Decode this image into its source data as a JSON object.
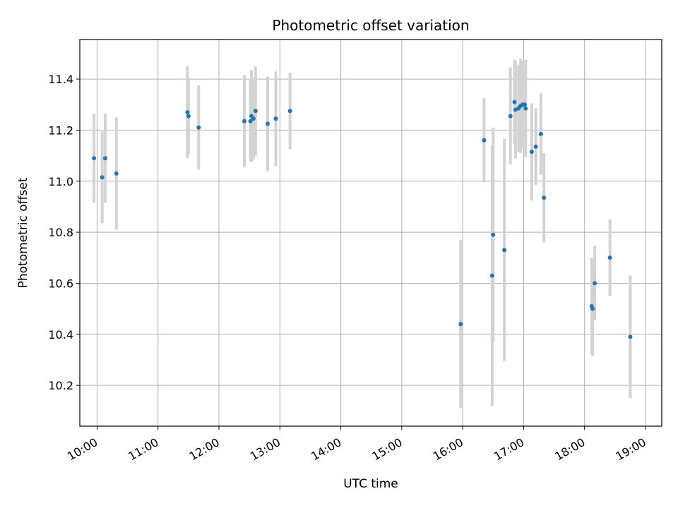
{
  "chart_data": {
    "type": "scatter",
    "title": "Photometric offset variation",
    "xlabel": "UTC time",
    "ylabel": "Photometric offset",
    "xlim": [
      "09:43",
      "19:16"
    ],
    "ylim": [
      10.04,
      11.555
    ],
    "x_ticks": [
      "10:00",
      "11:00",
      "12:00",
      "13:00",
      "14:00",
      "15:00",
      "16:00",
      "17:00",
      "18:00",
      "19:00"
    ],
    "y_ticks": [
      10.2,
      10.4,
      10.6,
      10.8,
      11.0,
      11.2,
      11.4
    ],
    "y_tick_labels": [
      "10.2",
      "10.4",
      "10.6",
      "10.8",
      "11.0",
      "11.2",
      "11.4"
    ],
    "grid": true,
    "colors": {
      "point": "#1f77b4",
      "errorbar": "#d3d3d3",
      "grid": "#b0b0b0"
    },
    "points": [
      {
        "x": "09:57",
        "y": 11.09,
        "err": 0.175
      },
      {
        "x": "10:05",
        "y": 11.015,
        "err": 0.18
      },
      {
        "x": "10:08",
        "y": 11.09,
        "err": 0.175
      },
      {
        "x": "10:19",
        "y": 11.03,
        "err": 0.22
      },
      {
        "x": "11:29",
        "y": 11.27,
        "err": 0.18
      },
      {
        "x": "11:30",
        "y": 11.255,
        "err": 0.15
      },
      {
        "x": "11:40",
        "y": 11.21,
        "err": 0.165
      },
      {
        "x": "12:25",
        "y": 11.235,
        "err": 0.18
      },
      {
        "x": "12:31",
        "y": 11.235,
        "err": 0.16
      },
      {
        "x": "12:32",
        "y": 11.255,
        "err": 0.18
      },
      {
        "x": "12:34",
        "y": 11.245,
        "err": 0.16
      },
      {
        "x": "12:36",
        "y": 11.275,
        "err": 0.175
      },
      {
        "x": "12:48",
        "y": 11.225,
        "err": 0.185
      },
      {
        "x": "12:56",
        "y": 11.245,
        "err": 0.185
      },
      {
        "x": "13:10",
        "y": 11.275,
        "err": 0.15
      },
      {
        "x": "15:58",
        "y": 10.44,
        "err": 0.33
      },
      {
        "x": "16:21",
        "y": 11.16,
        "err": 0.165
      },
      {
        "x": "16:29",
        "y": 10.63,
        "err": 0.51
      },
      {
        "x": "16:30",
        "y": 10.79,
        "err": 0.42
      },
      {
        "x": "16:41",
        "y": 10.73,
        "err": 0.435
      },
      {
        "x": "16:47",
        "y": 11.255,
        "err": 0.19
      },
      {
        "x": "16:51",
        "y": 11.31,
        "err": 0.165
      },
      {
        "x": "16:52",
        "y": 11.28,
        "err": 0.19
      },
      {
        "x": "16:55",
        "y": 11.285,
        "err": 0.17
      },
      {
        "x": "16:57",
        "y": 11.295,
        "err": 0.185
      },
      {
        "x": "16:59",
        "y": 11.3,
        "err": 0.17
      },
      {
        "x": "17:01",
        "y": 11.3,
        "err": 0.16
      },
      {
        "x": "17:02",
        "y": 11.285,
        "err": 0.19
      },
      {
        "x": "17:08",
        "y": 11.115,
        "err": 0.19
      },
      {
        "x": "17:12",
        "y": 11.135,
        "err": 0.15
      },
      {
        "x": "17:17",
        "y": 11.185,
        "err": 0.16
      },
      {
        "x": "17:20",
        "y": 10.935,
        "err": 0.175
      },
      {
        "x": "18:07",
        "y": 10.51,
        "err": 0.19
      },
      {
        "x": "18:08",
        "y": 10.5,
        "err": 0.185
      },
      {
        "x": "18:10",
        "y": 10.6,
        "err": 0.145
      },
      {
        "x": "18:25",
        "y": 10.7,
        "err": 0.15
      },
      {
        "x": "18:45",
        "y": 10.39,
        "err": 0.24
      }
    ]
  }
}
